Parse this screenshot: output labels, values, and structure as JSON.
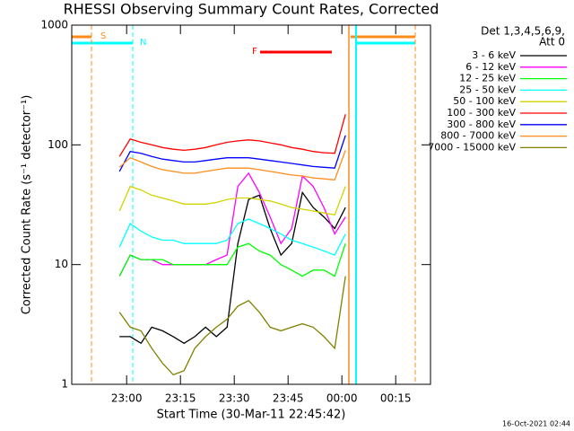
{
  "chart_data": {
    "type": "line",
    "title": "RHESSI Observing Summary Count Rates, Corrected",
    "x_label": "Start Time (30-Mar-11 22:45:42)",
    "y_label": "Corrected Count Rate (s⁻¹ detector⁻¹)",
    "legend_title": [
      "Det 1,3,4,5,6,9,",
      "Att 0"
    ],
    "timestamp": "16-Oct-2021 02:44",
    "annotations": [
      "S",
      "N",
      "F"
    ],
    "log_y": true,
    "xlim": [
      -0.3,
      99.7
    ],
    "xticks": [
      {
        "value": 15,
        "label": "23:00"
      },
      {
        "value": 30,
        "label": "23:15"
      },
      {
        "value": 45,
        "label": "23:30"
      },
      {
        "value": 60,
        "label": "23:45"
      },
      {
        "value": 75,
        "label": "00:00"
      },
      {
        "value": 90,
        "label": "00:15"
      }
    ],
    "ylim": [
      1,
      1000
    ],
    "yticks": [
      1,
      10,
      100,
      1000
    ],
    "x": [
      13,
      16,
      19,
      22,
      25,
      28,
      31,
      34,
      37,
      40,
      43,
      46,
      49,
      52,
      55,
      58,
      61,
      64,
      67,
      70,
      73,
      76
    ],
    "series": [
      {
        "name": "3 - 6 keV",
        "color": "#000000",
        "values": [
          2.5,
          2.5,
          2.2,
          3,
          2.8,
          2.5,
          2.2,
          2.5,
          3,
          2.5,
          3,
          15,
          35,
          38,
          20,
          12,
          15,
          40,
          30,
          25,
          20,
          30
        ]
      },
      {
        "name": "6 - 12 keV",
        "color": "#ff00ff",
        "values": [
          8,
          12,
          11,
          11,
          10,
          10,
          10,
          10,
          10,
          11,
          12,
          45,
          58,
          40,
          25,
          15,
          20,
          55,
          45,
          30,
          18,
          25
        ]
      },
      {
        "name": "12 - 25 keV",
        "color": "#00ff00",
        "values": [
          8,
          12,
          11,
          11,
          11,
          10,
          10,
          10,
          10,
          10,
          10,
          14,
          15,
          13,
          12,
          10,
          9,
          8,
          9,
          9,
          8,
          15
        ]
      },
      {
        "name": "25 - 50 keV",
        "color": "#00ffff",
        "values": [
          14,
          22,
          19,
          17,
          16,
          16,
          15,
          15,
          15,
          15,
          16,
          22,
          24,
          22,
          20,
          18,
          16,
          15,
          14,
          13,
          12,
          18
        ]
      },
      {
        "name": "50 - 100 keV",
        "color": "#d2d200",
        "values": [
          28,
          45,
          42,
          38,
          36,
          34,
          32,
          32,
          32,
          33,
          35,
          36,
          36,
          35,
          34,
          32,
          30,
          29,
          28,
          27,
          26,
          45
        ]
      },
      {
        "name": "100 - 300 keV",
        "color": "#ff0000",
        "values": [
          80,
          112,
          105,
          100,
          95,
          92,
          90,
          92,
          95,
          100,
          105,
          108,
          110,
          108,
          104,
          100,
          95,
          92,
          88,
          86,
          85,
          180
        ]
      },
      {
        "name": "300 - 800 keV",
        "color": "#0000ff",
        "values": [
          60,
          88,
          85,
          80,
          76,
          74,
          72,
          72,
          74,
          76,
          78,
          78,
          78,
          76,
          74,
          72,
          70,
          68,
          66,
          65,
          64,
          120
        ]
      },
      {
        "name": "800 - 7000 keV",
        "color": "#ff8c1a",
        "values": [
          65,
          78,
          72,
          66,
          62,
          60,
          58,
          58,
          60,
          62,
          64,
          64,
          64,
          62,
          60,
          58,
          56,
          55,
          53,
          52,
          51,
          90
        ]
      },
      {
        "name": "7000 - 15000 keV",
        "color": "#808000",
        "values": [
          4,
          3,
          2.8,
          2,
          1.5,
          1.2,
          1.3,
          2,
          2.5,
          3,
          3.5,
          4.5,
          5,
          4,
          3,
          2.8,
          3,
          3.2,
          3,
          2.5,
          2,
          8
        ]
      }
    ]
  }
}
